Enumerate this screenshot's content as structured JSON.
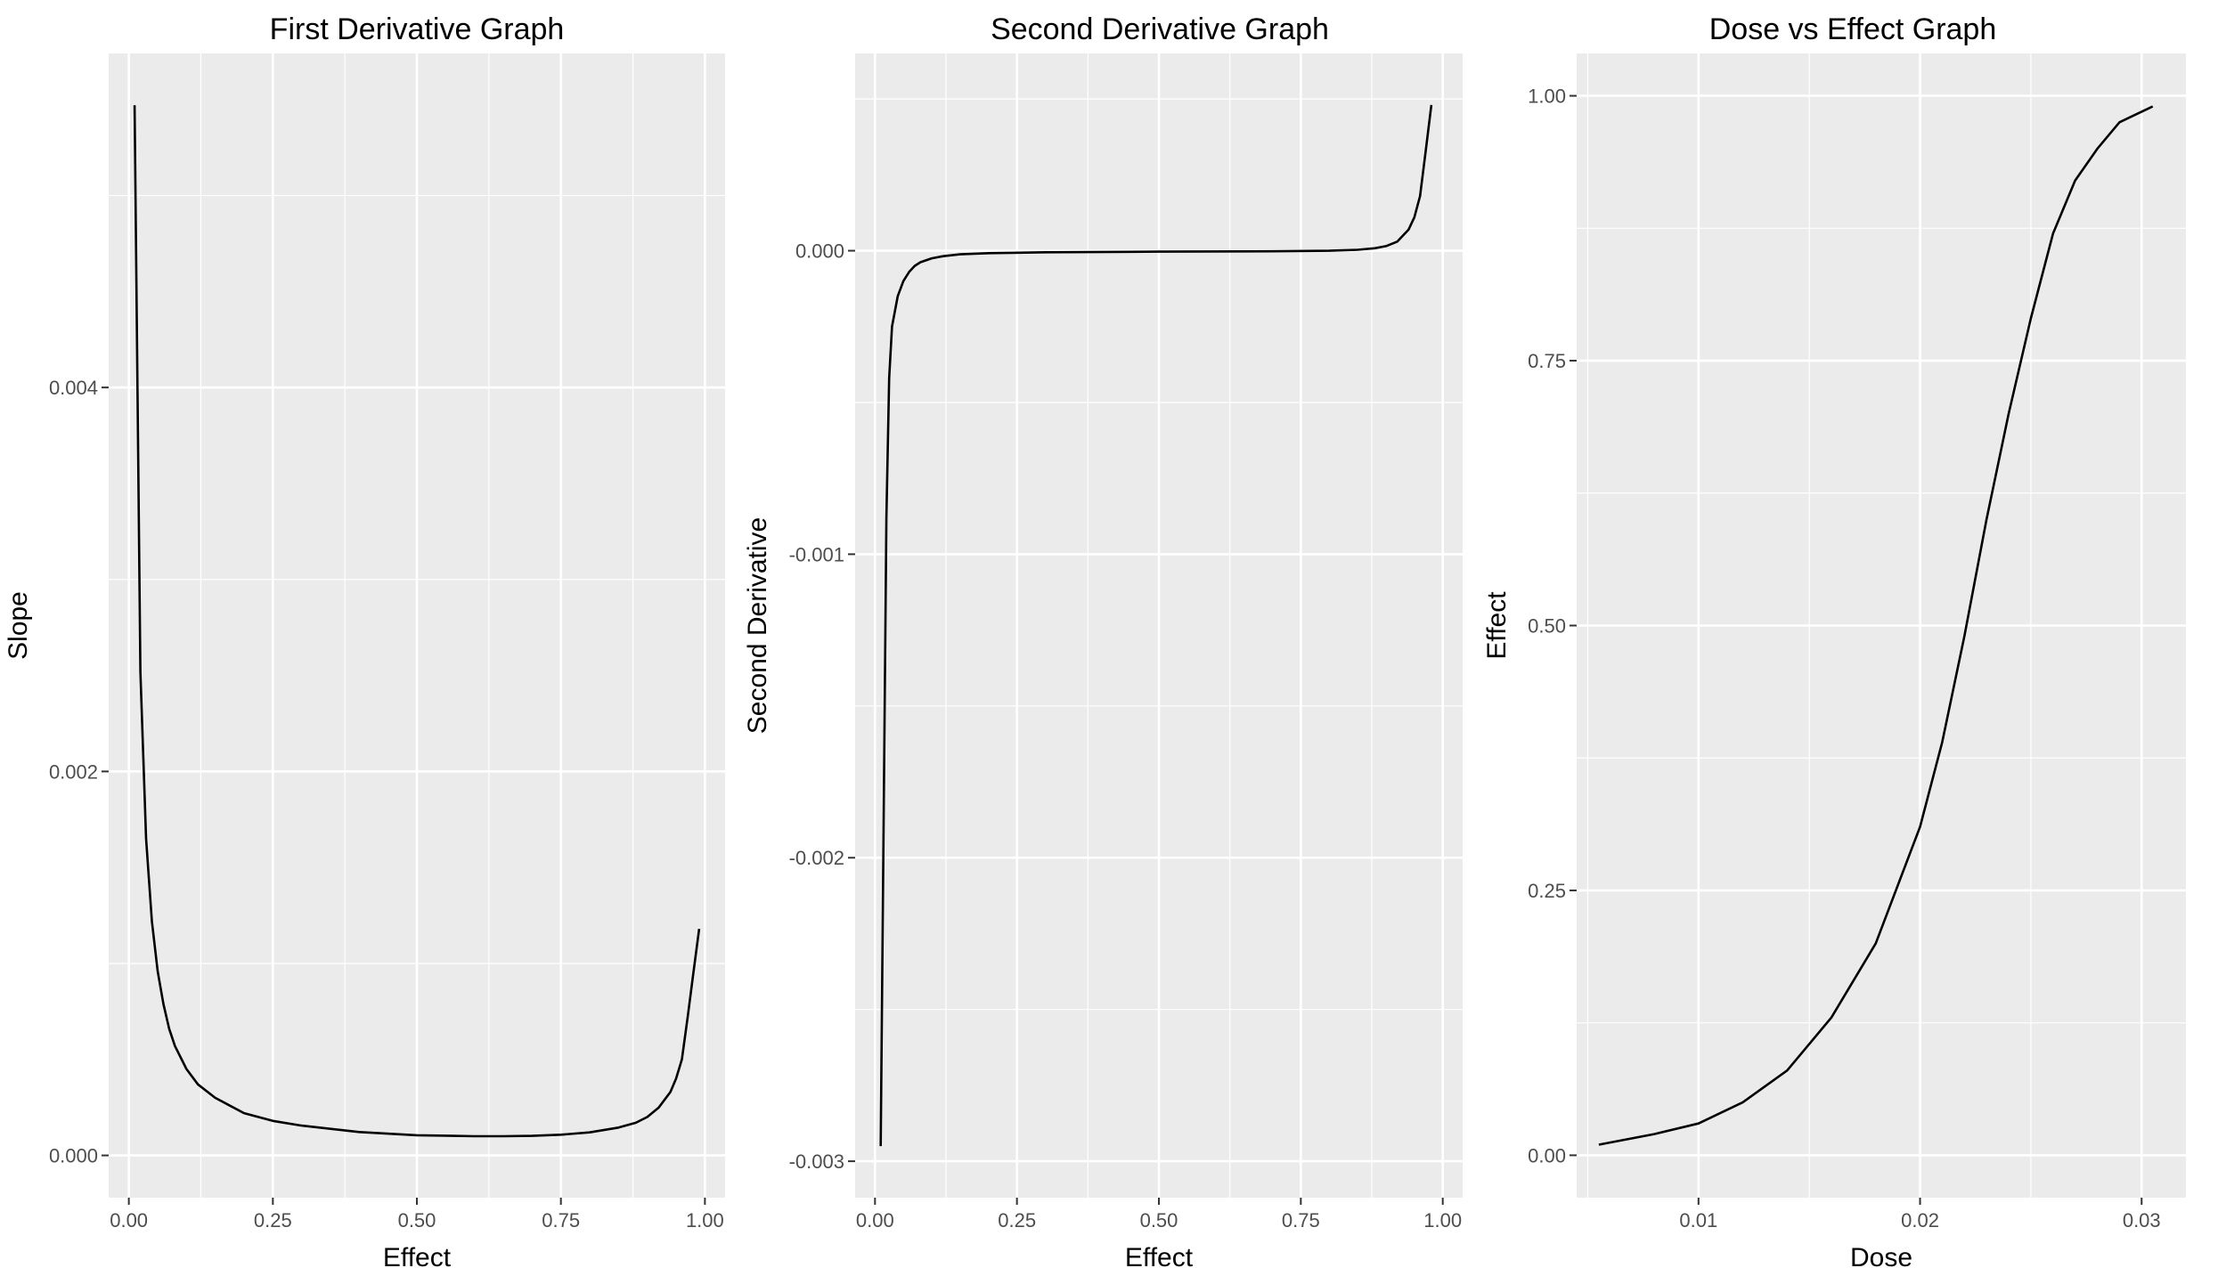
{
  "chart_data": [
    {
      "type": "line",
      "title": "First Derivative Graph",
      "xlabel": "Effect",
      "ylabel": "Slope",
      "xlim": [
        -0.035,
        1.035
      ],
      "ylim": [
        -0.00022,
        0.00574
      ],
      "x_ticks": [
        0,
        0.25,
        0.5,
        0.75,
        1
      ],
      "x_tick_labels": [
        "0.00",
        "0.25",
        "0.50",
        "0.75",
        "1.00"
      ],
      "y_ticks": [
        0,
        0.002,
        0.004
      ],
      "y_tick_labels": [
        "0.000",
        "0.002",
        "0.004"
      ],
      "grid": true,
      "series": [
        {
          "x": [
            0.01,
            0.02,
            0.03,
            0.04,
            0.05,
            0.06,
            0.07,
            0.08,
            0.1,
            0.12,
            0.15,
            0.2,
            0.25,
            0.3,
            0.4,
            0.5,
            0.6,
            0.65,
            0.7,
            0.75,
            0.8,
            0.85,
            0.88,
            0.9,
            0.92,
            0.94,
            0.95,
            0.96,
            0.97,
            0.98,
            0.99
          ],
          "y": [
            0.00547,
            0.00252,
            0.00165,
            0.00122,
            0.00096,
            0.00079,
            0.00066,
            0.00057,
            0.00045,
            0.00037,
            0.0003,
            0.00022,
            0.00018,
            0.000155,
            0.000122,
            0.000105,
            0.0001,
            0.0001,
            0.000102,
            0.000108,
            0.00012,
            0.000145,
            0.00017,
            0.0002,
            0.00025,
            0.00033,
            0.0004,
            0.0005,
            0.00072,
            0.00095,
            0.00118
          ]
        }
      ]
    },
    {
      "type": "line",
      "title": "Second Derivative Graph",
      "xlabel": "Effect",
      "ylabel": "Second Derivative",
      "xlim": [
        -0.035,
        1.035
      ],
      "ylim": [
        -0.00312,
        0.00065
      ],
      "x_ticks": [
        0,
        0.25,
        0.5,
        0.75,
        1
      ],
      "x_tick_labels": [
        "0.00",
        "0.25",
        "0.50",
        "0.75",
        "1.00"
      ],
      "y_ticks": [
        -0.003,
        -0.002,
        -0.001,
        0
      ],
      "y_tick_labels": [
        "-0.003",
        "-0.002",
        "-0.001",
        "0.000"
      ],
      "grid": true,
      "series": [
        {
          "x": [
            0.01,
            0.02,
            0.025,
            0.03,
            0.04,
            0.05,
            0.06,
            0.07,
            0.08,
            0.1,
            0.12,
            0.15,
            0.2,
            0.3,
            0.5,
            0.7,
            0.8,
            0.85,
            0.88,
            0.9,
            0.92,
            0.94,
            0.95,
            0.96,
            0.97,
            0.98
          ],
          "y": [
            -0.00295,
            -0.00088,
            -0.00042,
            -0.00025,
            -0.00015,
            -0.0001,
            -7e-05,
            -5e-05,
            -3.8e-05,
            -2.5e-05,
            -1.8e-05,
            -1.2e-05,
            -8e-06,
            -5e-06,
            -3e-06,
            -2e-06,
            0.0,
            3e-06,
            8e-06,
            1.5e-05,
            3e-05,
            7e-05,
            0.00011,
            0.00018,
            0.00033,
            0.00048
          ]
        }
      ]
    },
    {
      "type": "line",
      "title": "Dose vs Effect Graph",
      "xlabel": "Dose",
      "ylabel": "Effect",
      "xlim": [
        0.0045,
        0.032
      ],
      "ylim": [
        -0.04,
        1.04
      ],
      "x_ticks": [
        0.01,
        0.02,
        0.03
      ],
      "x_tick_labels": [
        "0.01",
        "0.02",
        "0.03"
      ],
      "y_ticks": [
        0,
        0.25,
        0.5,
        0.75,
        1
      ],
      "y_tick_labels": [
        "0.00",
        "0.25",
        "0.50",
        "0.75",
        "1.00"
      ],
      "grid": true,
      "series": [
        {
          "x": [
            0.0055,
            0.008,
            0.01,
            0.012,
            0.014,
            0.016,
            0.018,
            0.02,
            0.021,
            0.022,
            0.023,
            0.024,
            0.025,
            0.026,
            0.027,
            0.028,
            0.029,
            0.03,
            0.0305
          ],
          "y": [
            0.01,
            0.02,
            0.03,
            0.05,
            0.08,
            0.13,
            0.2,
            0.31,
            0.39,
            0.49,
            0.6,
            0.7,
            0.79,
            0.87,
            0.92,
            0.95,
            0.975,
            0.985,
            0.99
          ]
        }
      ]
    }
  ]
}
